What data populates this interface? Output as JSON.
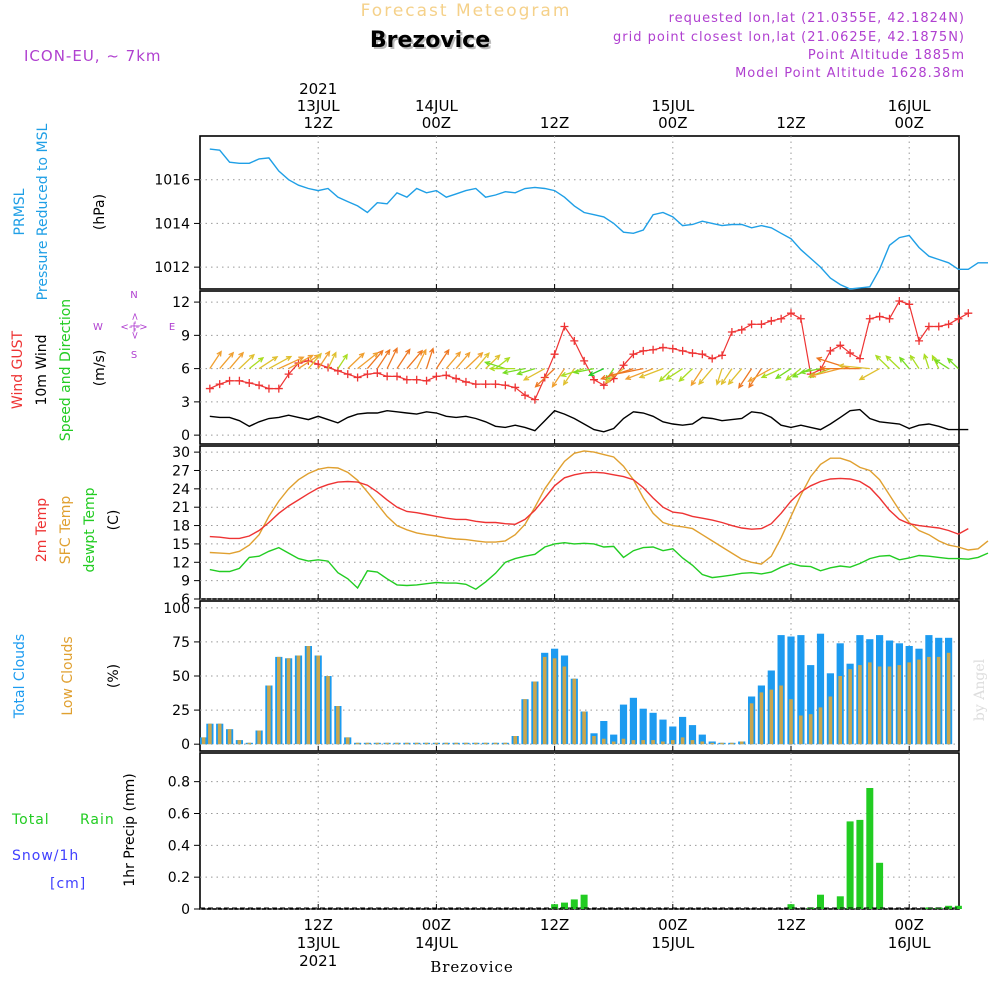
{
  "header": {
    "super_title": "Forecast Meteogram",
    "location": "Brezovice",
    "model": "ICON-EU, ~ 7km",
    "requested": "requested lon,lat (21.0355E, 42.1824N)",
    "grid_point": "grid point closest lon,lat (21.0625E, 42.1875N)",
    "point_altitude": "Point Altitude 1885m",
    "model_altitude": "Model Point Altitude 1628.38m",
    "footer": "Brezovice",
    "watermark": "by Angel"
  },
  "colors": {
    "pressure": "#1f9fe6",
    "gust": "#ee3333",
    "wind": "#000000",
    "green": "#22cc22",
    "temp2m": "#ee3333",
    "sfc": "#e0a030",
    "dew": "#22cc22",
    "total_clouds": "#1c9bf0",
    "low_clouds": "#c9a64e",
    "rain": "#22cc22",
    "snow": "#4040ff",
    "purple": "#b040d0"
  },
  "axis_time": {
    "top_ticks": [
      {
        "h": 12,
        "lines": [
          "2021",
          "13JUL",
          "12Z"
        ]
      },
      {
        "h": 24,
        "lines": [
          "14JUL",
          "00Z"
        ]
      },
      {
        "h": 36,
        "lines": [
          "12Z"
        ]
      },
      {
        "h": 48,
        "lines": [
          "15JUL",
          "00Z"
        ]
      },
      {
        "h": 60,
        "lines": [
          "12Z"
        ]
      },
      {
        "h": 72,
        "lines": [
          "16JUL",
          "00Z"
        ]
      }
    ],
    "bottom_ticks": [
      {
        "h": 12,
        "lines": [
          "12Z",
          "13JUL",
          "2021"
        ]
      },
      {
        "h": 24,
        "lines": [
          "00Z",
          "14JUL"
        ]
      },
      {
        "h": 36,
        "lines": [
          "12Z"
        ]
      },
      {
        "h": 48,
        "lines": [
          "00Z",
          "15JUL"
        ]
      },
      {
        "h": 60,
        "lines": [
          "12Z"
        ]
      },
      {
        "h": 72,
        "lines": [
          "00Z",
          "16JUL"
        ]
      }
    ]
  },
  "labels": {
    "p1": [
      "PRMSL",
      "Pressure Reduced to MSL",
      "(hPa)"
    ],
    "p2": [
      "Wind GUST",
      "10m Wind",
      "Speed and Direction",
      "(m/s)"
    ],
    "compass": {
      "n": "N",
      "s": "S",
      "w": "W",
      "e": "E"
    },
    "p3": [
      "2m Temp",
      "SFC Temp",
      "dewpt Temp",
      "(C)"
    ],
    "p4": [
      "Total Clouds",
      "Low Clouds",
      "(%)"
    ],
    "p5": [
      "Total",
      "Rain",
      "Snow/1h",
      "[cm]",
      "1hr Precip (mm)"
    ]
  },
  "chart_data": [
    {
      "type": "line",
      "title": "PRMSL Pressure Reduced to MSL",
      "ylabel": "(hPa)",
      "ylim": [
        1011,
        1018
      ],
      "yticks": [
        1012,
        1014,
        1016
      ],
      "x_start_hour": 1,
      "x_step_hours": 1,
      "x_range": [
        1,
        77.5
      ],
      "series": [
        {
          "name": "PRMSL",
          "values": [
            1017.4,
            1017.35,
            1016.8,
            1016.75,
            1016.75,
            1016.95,
            1017.0,
            1016.4,
            1016.0,
            1015.75,
            1015.6,
            1015.5,
            1015.6,
            1015.2,
            1015.0,
            1014.8,
            1014.5,
            1014.95,
            1014.9,
            1015.4,
            1015.2,
            1015.6,
            1015.4,
            1015.5,
            1015.2,
            1015.35,
            1015.5,
            1015.6,
            1015.2,
            1015.3,
            1015.45,
            1015.4,
            1015.6,
            1015.65,
            1015.6,
            1015.5,
            1015.2,
            1014.8,
            1014.5,
            1014.4,
            1014.3,
            1014.0,
            1013.6,
            1013.55,
            1013.7,
            1014.4,
            1014.5,
            1014.3,
            1013.9,
            1013.95,
            1014.1,
            1014.0,
            1013.9,
            1013.95,
            1013.95,
            1013.8,
            1013.9,
            1013.8,
            1013.55,
            1013.3,
            1012.8,
            1012.4,
            1012.0,
            1011.5,
            1011.2,
            1011.0,
            1011.05,
            1011.1,
            1011.9,
            1013.0,
            1013.35,
            1013.45,
            1012.9,
            1012.5,
            1012.35,
            1012.2,
            1011.9,
            1011.9,
            1012.2,
            1012.2
          ]
        }
      ]
    },
    {
      "type": "line",
      "title": "Wind GUST / 10m Wind Speed and Direction",
      "ylabel": "(m/s)",
      "ylim": [
        -0.8,
        13
      ],
      "yticks": [
        0,
        3,
        6,
        9,
        12
      ],
      "x_start_hour": 1,
      "x_step_hours": 1,
      "x_range": [
        1,
        77.5
      ],
      "series": [
        {
          "name": "Wind GUST",
          "values": [
            4.2,
            4.6,
            4.9,
            4.9,
            4.7,
            4.5,
            4.2,
            4.2,
            5.5,
            6.5,
            6.7,
            6.4,
            6.1,
            5.8,
            5.5,
            5.2,
            5.5,
            5.6,
            5.3,
            5.3,
            5.0,
            5.0,
            4.9,
            5.3,
            5.4,
            5.1,
            4.8,
            4.6,
            4.6,
            4.6,
            4.5,
            4.3,
            3.6,
            3.2,
            5.2,
            7.3,
            9.8,
            8.5,
            6.7,
            5.0,
            4.5,
            5.1,
            6.3,
            7.3,
            7.6,
            7.7,
            7.9,
            7.8,
            7.6,
            7.4,
            7.3,
            6.9,
            7.2,
            9.3,
            9.5,
            10.0,
            10.0,
            10.3,
            10.5,
            11.0,
            10.5,
            5.5,
            5.9,
            7.6,
            8.1,
            7.4,
            6.9,
            10.5,
            10.7,
            10.5,
            12.1,
            11.8,
            8.5,
            9.8,
            9.8,
            10.0,
            10.5,
            11.0
          ]
        },
        {
          "name": "10m Wind",
          "values": [
            1.7,
            1.6,
            1.6,
            1.3,
            0.8,
            1.2,
            1.5,
            1.6,
            1.8,
            1.6,
            1.4,
            1.7,
            1.4,
            1.1,
            1.6,
            1.9,
            2.0,
            2.0,
            2.2,
            2.1,
            2.0,
            1.9,
            2.1,
            2.0,
            1.7,
            1.6,
            1.7,
            1.5,
            1.2,
            0.8,
            0.7,
            0.9,
            0.7,
            0.4,
            1.3,
            2.2,
            1.9,
            1.5,
            1.0,
            0.5,
            0.3,
            0.6,
            1.5,
            2.1,
            2.0,
            1.7,
            1.2,
            1.0,
            0.9,
            1.0,
            1.6,
            1.5,
            1.3,
            1.4,
            1.5,
            2.1,
            2.0,
            1.6,
            0.9,
            0.7,
            0.9,
            0.7,
            0.5,
            1.0,
            1.6,
            2.2,
            2.3,
            1.5,
            1.2,
            1.1,
            1.0,
            0.6,
            0.9,
            1.0,
            0.8,
            0.5,
            0.5,
            0.5
          ]
        }
      ],
      "arrow_row_level": 6,
      "wind_direction_to_deg": [
        20,
        25,
        25,
        30,
        35,
        40,
        45,
        50,
        45,
        40,
        25,
        20,
        15,
        20,
        30,
        35,
        25,
        20,
        15,
        20,
        25,
        15,
        10,
        20,
        25,
        25,
        30,
        25,
        30,
        35,
        300,
        270,
        250,
        240,
        225,
        210,
        200,
        200,
        240,
        250,
        230,
        200,
        215,
        240,
        250,
        235,
        235,
        210,
        220,
        210,
        200,
        205,
        190,
        200,
        205,
        200,
        200,
        225,
        230,
        220,
        215,
        230,
        250,
        235,
        245,
        300,
        270,
        280,
        225,
        330,
        330,
        335,
        340,
        350,
        345,
        320,
        330
      ]
    },
    {
      "type": "line",
      "title": "2m Temp / SFC Temp / dewpt Temp",
      "ylabel": "(C)",
      "ylim": [
        6,
        31
      ],
      "yticks": [
        6,
        9,
        12,
        15,
        18,
        21,
        24,
        27,
        30
      ],
      "x_start_hour": 1,
      "x_step_hours": 1,
      "x_range": [
        1,
        77.5
      ],
      "series": [
        {
          "name": "2m Temp",
          "values": [
            16.2,
            16.1,
            15.9,
            15.9,
            16.3,
            17.2,
            18.5,
            20.0,
            21.2,
            22.2,
            23.2,
            24.1,
            24.7,
            25.1,
            25.2,
            25.1,
            24.6,
            23.5,
            22.2,
            21.0,
            20.3,
            20.1,
            19.8,
            19.5,
            19.2,
            19.0,
            19.0,
            18.7,
            18.5,
            18.5,
            18.3,
            18.2,
            19.0,
            20.5,
            22.5,
            24.5,
            25.8,
            26.3,
            26.6,
            26.7,
            26.6,
            26.3,
            26.0,
            25.5,
            24.2,
            22.5,
            21.0,
            20.2,
            20.0,
            19.5,
            19.2,
            18.9,
            18.5,
            18.0,
            17.6,
            17.4,
            17.5,
            18.3,
            20.0,
            22.0,
            23.5,
            24.5,
            25.2,
            25.6,
            25.7,
            25.6,
            25.2,
            24.2,
            22.5,
            20.5,
            19.0,
            18.3,
            18.0,
            17.8,
            17.6,
            17.2,
            16.6,
            17.5
          ]
        },
        {
          "name": "SFC Temp",
          "values": [
            13.6,
            13.5,
            13.4,
            13.8,
            14.8,
            16.5,
            19.5,
            22.0,
            24.0,
            25.5,
            26.5,
            27.2,
            27.5,
            27.4,
            26.7,
            25.4,
            23.5,
            21.5,
            19.5,
            18.0,
            17.3,
            16.8,
            16.5,
            16.3,
            16.0,
            15.8,
            15.7,
            15.5,
            15.3,
            15.3,
            15.5,
            16.5,
            18.2,
            21.0,
            24.0,
            26.3,
            28.5,
            29.8,
            30.2,
            30.0,
            29.6,
            29.2,
            27.7,
            25.5,
            22.5,
            20.0,
            18.5,
            18.0,
            17.8,
            17.5,
            16.5,
            15.5,
            14.5,
            13.5,
            12.5,
            12.0,
            11.7,
            13.0,
            16.0,
            19.5,
            23.0,
            26.0,
            28.0,
            29.0,
            29.0,
            28.5,
            27.5,
            27.0,
            25.5,
            23.0,
            20.5,
            18.5,
            17.2,
            16.5,
            15.5,
            14.8,
            14.5,
            14.0,
            14.2,
            15.5
          ]
        },
        {
          "name": "dewpt Temp",
          "values": [
            10.8,
            10.5,
            10.5,
            11.0,
            12.8,
            13.0,
            13.8,
            14.4,
            13.5,
            12.6,
            12.2,
            12.4,
            12.2,
            10.3,
            9.3,
            7.8,
            10.6,
            10.4,
            9.3,
            8.3,
            8.2,
            8.3,
            8.5,
            8.7,
            8.6,
            8.6,
            8.4,
            7.6,
            8.8,
            10.2,
            12.0,
            12.6,
            13.0,
            13.3,
            14.5,
            15.0,
            15.2,
            15.0,
            15.1,
            15.0,
            14.5,
            14.6,
            12.8,
            13.9,
            14.4,
            14.5,
            13.9,
            14.2,
            12.7,
            11.5,
            10.0,
            9.5,
            9.7,
            9.9,
            10.2,
            10.3,
            10.1,
            10.4,
            11.2,
            11.8,
            11.4,
            11.3,
            10.6,
            11.1,
            11.4,
            11.2,
            11.8,
            12.6,
            13.0,
            13.1,
            12.4,
            12.7,
            13.1,
            13.0,
            12.8,
            12.6,
            12.6,
            12.5,
            12.8,
            13.5
          ]
        }
      ]
    },
    {
      "type": "bar",
      "title": "Total Clouds / Low Clouds",
      "ylabel": "(%)",
      "ylim": [
        -5,
        105
      ],
      "yticks": [
        0,
        25,
        50,
        75,
        100
      ],
      "x_start_hour": 0,
      "x_step_hours": 1,
      "x_range": [
        1,
        77.5
      ],
      "series": [
        {
          "name": "Total Clouds",
          "values": [
            5,
            15,
            15,
            11,
            3,
            1,
            10,
            43,
            64,
            63,
            65,
            72,
            65,
            50,
            28,
            5,
            1,
            1,
            1,
            1,
            1,
            1,
            1,
            1,
            1,
            1,
            1,
            1,
            1,
            1,
            1,
            1,
            6,
            33,
            46,
            67,
            70,
            65,
            48,
            24,
            8,
            17,
            7,
            29,
            34,
            26,
            23,
            18,
            13,
            20,
            14,
            7,
            2,
            1,
            1,
            2,
            35,
            43,
            54,
            80,
            79,
            80,
            58,
            81,
            52,
            74,
            59,
            80,
            77,
            80,
            76,
            74,
            72,
            70,
            80,
            78,
            78
          ],
          "_note": "hourly total cloud cover"
        },
        {
          "name": "Low Clouds",
          "values": [
            5,
            15,
            15,
            11,
            3,
            1,
            10,
            43,
            64,
            63,
            65,
            72,
            65,
            50,
            28,
            5,
            1,
            1,
            1,
            1,
            1,
            1,
            1,
            1,
            1,
            1,
            1,
            1,
            1,
            1,
            1,
            1,
            6,
            33,
            46,
            64,
            63,
            57,
            48,
            24,
            6,
            4,
            2,
            4,
            3,
            3,
            3,
            2,
            3,
            5,
            3,
            2,
            1,
            1,
            1,
            2,
            30,
            38,
            40,
            43,
            33,
            21,
            22,
            27,
            35,
            50,
            55,
            58,
            60,
            57,
            57,
            58,
            60,
            62,
            64,
            64,
            67
          ]
        }
      ]
    },
    {
      "type": "bar",
      "title": "1hr Precip (mm)",
      "ylabel": "1hr Precip (mm)",
      "ylim": [
        0,
        0.98
      ],
      "yticks": [
        0,
        0.2,
        0.4,
        0.6,
        0.8
      ],
      "yticklabels": [
        "0",
        "0.2",
        "0.4",
        "0.6",
        "0.8"
      ],
      "x_start_hour": 0,
      "x_step_hours": 1,
      "x_range": [
        1,
        77.5
      ],
      "series": [
        {
          "name": "Rain",
          "values": [
            0,
            0,
            0,
            0,
            0,
            0,
            0,
            0,
            0,
            0,
            0,
            0,
            0,
            0,
            0,
            0,
            0,
            0,
            0,
            0,
            0,
            0,
            0,
            0,
            0,
            0,
            0,
            0,
            0,
            0,
            0,
            0,
            0,
            0,
            0,
            0,
            0.03,
            0.04,
            0.06,
            0.09,
            0,
            0,
            0,
            0,
            0,
            0,
            0,
            0,
            0,
            0,
            0,
            0,
            0,
            0,
            0,
            0,
            0,
            0,
            0,
            0,
            0.03,
            0,
            0.01,
            0.09,
            0,
            0.08,
            0.55,
            0.56,
            0.76,
            0.29,
            0,
            0,
            0,
            0,
            0.01,
            0.01,
            0.02,
            0.02
          ]
        },
        {
          "name": "Snow/1h",
          "values": []
        }
      ]
    }
  ]
}
